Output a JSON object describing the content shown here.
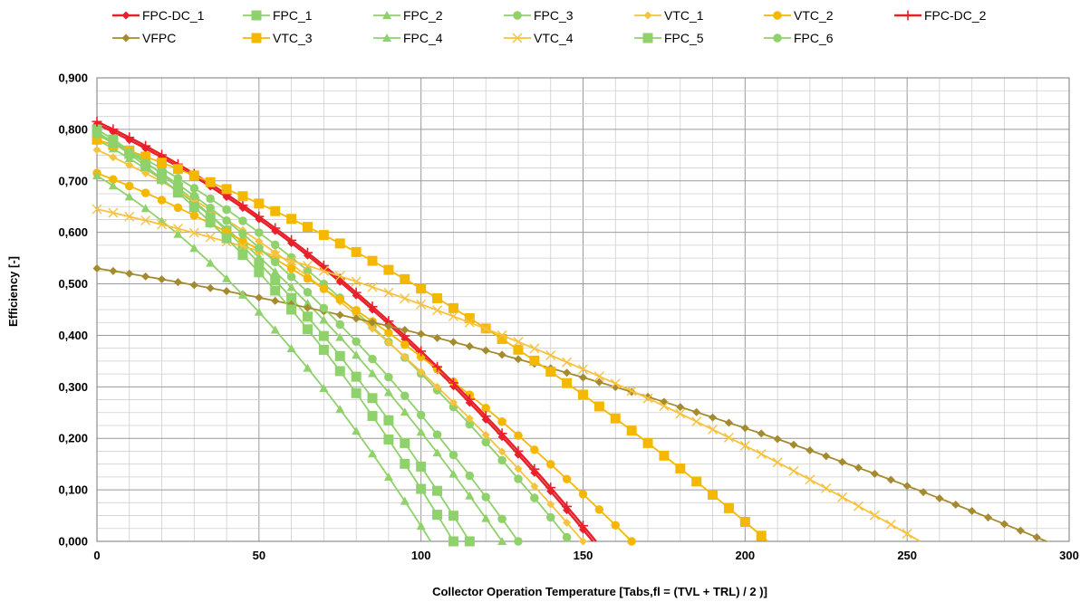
{
  "chart_data": {
    "type": "line",
    "title": "",
    "xlabel": "Collector Operation Temperature  [Tabs,fl = (TVL + TRL) / 2 )]",
    "ylabel": "Efficiency [-]",
    "xlim": [
      0,
      300
    ],
    "ylim": [
      0,
      0.9
    ],
    "x_ticks": [
      0,
      50,
      100,
      150,
      200,
      250,
      300
    ],
    "x_tick_labels": [
      "0",
      "50",
      "100",
      "150",
      "200",
      "250",
      "300"
    ],
    "y_ticks": [
      0,
      0.1,
      0.2,
      0.3,
      0.4,
      0.5,
      0.6,
      0.7,
      0.8,
      0.9
    ],
    "y_tick_labels": [
      "0,000",
      "0,100",
      "0,200",
      "0,300",
      "0,400",
      "0,500",
      "0,600",
      "0,700",
      "0,800",
      "0,900"
    ],
    "grid": true,
    "legend_position": "top",
    "series": [
      {
        "name": "FPC-DC_1",
        "color": "#e8202a",
        "marker": "diamond",
        "eta0": 0.81,
        "x_end": 153
      },
      {
        "name": "FPC_1",
        "color": "#8fd16a",
        "marker": "square",
        "eta0": 0.8,
        "x_end": 115
      },
      {
        "name": "FPC_2",
        "color": "#8fd16a",
        "marker": "triangle",
        "eta0": 0.78,
        "x_end": 125
      },
      {
        "name": "FPC_3",
        "color": "#8fd16a",
        "marker": "circle",
        "eta0": 0.79,
        "x_end": 146
      },
      {
        "name": "VTC_1",
        "color": "#f7c23d",
        "marker": "diamond",
        "eta0": 0.76,
        "x_end": 150
      },
      {
        "name": "VTC_2",
        "color": "#f5b800",
        "marker": "circle",
        "eta0": 0.715,
        "x_end": 165
      },
      {
        "name": "FPC-DC_2",
        "color": "#e8202a",
        "marker": "plus",
        "eta0": 0.815,
        "x_end": 154
      },
      {
        "name": "VFPC",
        "color": "#a58b2f",
        "marker": "diamond",
        "eta0": 0.53,
        "x_end": 293
      },
      {
        "name": "VTC_3",
        "color": "#f5b800",
        "marker": "square",
        "eta0": 0.78,
        "x_end": 207
      },
      {
        "name": "FPC_4",
        "color": "#8fd16a",
        "marker": "triangle",
        "eta0": 0.71,
        "x_end": 103
      },
      {
        "name": "VTC_4",
        "color": "#f7c23d",
        "marker": "x",
        "eta0": 0.645,
        "x_end": 254
      },
      {
        "name": "FPC_5",
        "color": "#8fd16a",
        "marker": "square",
        "eta0": 0.795,
        "x_end": 110
      },
      {
        "name": "FPC_6",
        "color": "#8fd16a",
        "marker": "circle",
        "eta0": 0.79,
        "x_end": 130
      }
    ]
  }
}
